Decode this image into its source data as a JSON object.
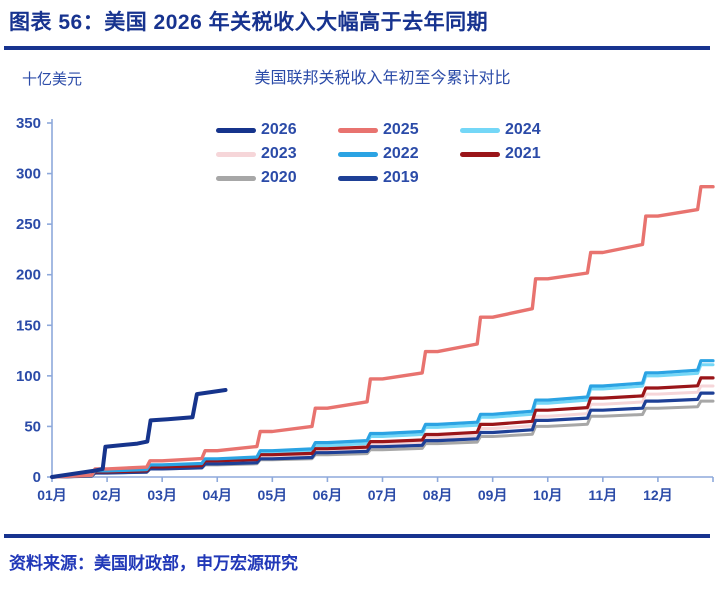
{
  "header": {
    "title": "图表 56：美国 2026 年关税收入大幅高于去年同期"
  },
  "footer": {
    "source": "资料来源：美国财政部，申万宏源研究"
  },
  "colors": {
    "title_blue": "#17338F",
    "rule_blue": "#17338F",
    "label_blue": "#2B4BA8",
    "source_blue": "#2138B8",
    "axis_line": "#8EA9DB",
    "background": "#ffffff"
  },
  "chart_data": {
    "type": "line",
    "title": "美国联邦关税收入年初至今累计对比",
    "ylabel": "十亿美元",
    "xlabel": "",
    "ylim": [
      0,
      350
    ],
    "y_ticks": [
      0,
      50,
      100,
      150,
      200,
      250,
      300,
      350
    ],
    "x_tick_labels": [
      "01月",
      "02月",
      "03月",
      "04月",
      "05月",
      "06月",
      "07月",
      "08月",
      "09月",
      "10月",
      "11月",
      "12月"
    ],
    "grid": false,
    "legend_position": "top-center",
    "x_unit": "months elapsed since Jan 1 (0 = Jan 1, 12 = Dec 31)",
    "value_unit": "billion USD, cumulative year-to-date",
    "legend_order": [
      "2026",
      "2025",
      "2024",
      "2023",
      "2022",
      "2021",
      "2020",
      "2019"
    ],
    "series": [
      {
        "name": "2020",
        "color": "#A7A7A7",
        "width": 3,
        "monthly_values": [
          0,
          4,
          8,
          12,
          17,
          22,
          27,
          33,
          40,
          50,
          60,
          68,
          75
        ]
      },
      {
        "name": "2023",
        "color": "#F6D6D9",
        "width": 3,
        "monthly_values": [
          0,
          5,
          9,
          14,
          20,
          26,
          32,
          39,
          48,
          60,
          72,
          82,
          90
        ]
      },
      {
        "name": "2024",
        "color": "#74D7F7",
        "width": 3,
        "monthly_values": [
          0,
          5,
          11,
          17,
          24,
          31,
          40,
          49,
          59,
          73,
          87,
          100,
          111
        ]
      },
      {
        "name": "2019",
        "color": "#1E4096",
        "width": 3.2,
        "monthly_values": [
          0,
          4,
          8,
          13,
          18,
          24,
          30,
          36,
          44,
          56,
          66,
          75,
          83
        ]
      },
      {
        "name": "2021",
        "color": "#9A1519",
        "width": 3.2,
        "monthly_values": [
          0,
          5,
          10,
          16,
          22,
          28,
          35,
          42,
          52,
          66,
          78,
          88,
          98
        ]
      },
      {
        "name": "2022",
        "color": "#2BA3E3",
        "width": 3.2,
        "monthly_values": [
          0,
          6,
          12,
          18,
          26,
          34,
          43,
          52,
          62,
          76,
          90,
          103,
          115
        ]
      },
      {
        "name": "2025",
        "color": "#E8736F",
        "width": 3.4,
        "monthly_values": [
          0,
          8,
          16,
          26,
          45,
          68,
          97,
          124,
          158,
          196,
          222,
          258,
          287
        ]
      },
      {
        "name": "2026",
        "color": "#16348C",
        "width": 4,
        "points": [
          [
            0,
            0
          ],
          [
            0.75,
            6
          ],
          [
            0.92,
            8
          ],
          [
            0.97,
            30
          ],
          [
            1.55,
            33
          ],
          [
            1.73,
            35
          ],
          [
            1.79,
            56
          ],
          [
            2.1,
            57
          ],
          [
            2.55,
            59
          ],
          [
            2.63,
            82
          ],
          [
            2.9,
            84
          ],
          [
            3.15,
            86
          ]
        ]
      }
    ]
  }
}
